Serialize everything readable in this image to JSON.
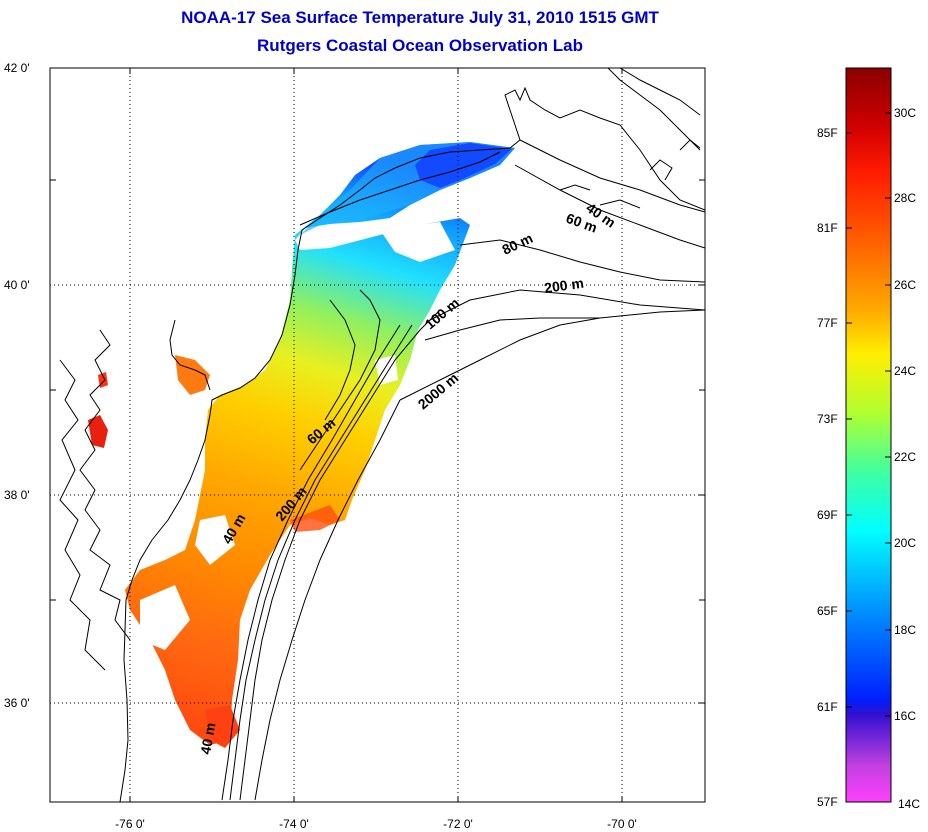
{
  "header": {
    "title_line1": "NOAA-17 Sea Surface Temperature July 31, 2010 1515 GMT",
    "title_line2": "Rutgers Coastal Ocean Observation Lab"
  },
  "map": {
    "lat_labels": [
      "42 0'",
      "40 0'",
      "38 0'",
      "36 0'"
    ],
    "lon_labels": [
      "-76 0'",
      "-74 0'",
      "-72 0'",
      "-70 0'"
    ],
    "grid": "dotted",
    "contour_labels": [
      "40 m",
      "60 m",
      "80 m",
      "200 m",
      "100 m",
      "2000 m",
      "60 m",
      "200 m",
      "40 m",
      "40 m"
    ]
  },
  "colorbar": {
    "fahrenheit_labels": [
      "85F",
      "81F",
      "77F",
      "73F",
      "69F",
      "65F",
      "61F",
      "57F"
    ],
    "celsius_labels": [
      "30C",
      "28C",
      "26C",
      "24C",
      "22C",
      "20C",
      "18C",
      "16C",
      "14C"
    ],
    "colors": [
      "#8b0000",
      "#ff0000",
      "#ff6a00",
      "#ffb000",
      "#ffff00",
      "#80ff40",
      "#00ffff",
      "#0080ff",
      "#0000ff",
      "#8040c0",
      "#ff40ff"
    ]
  }
}
